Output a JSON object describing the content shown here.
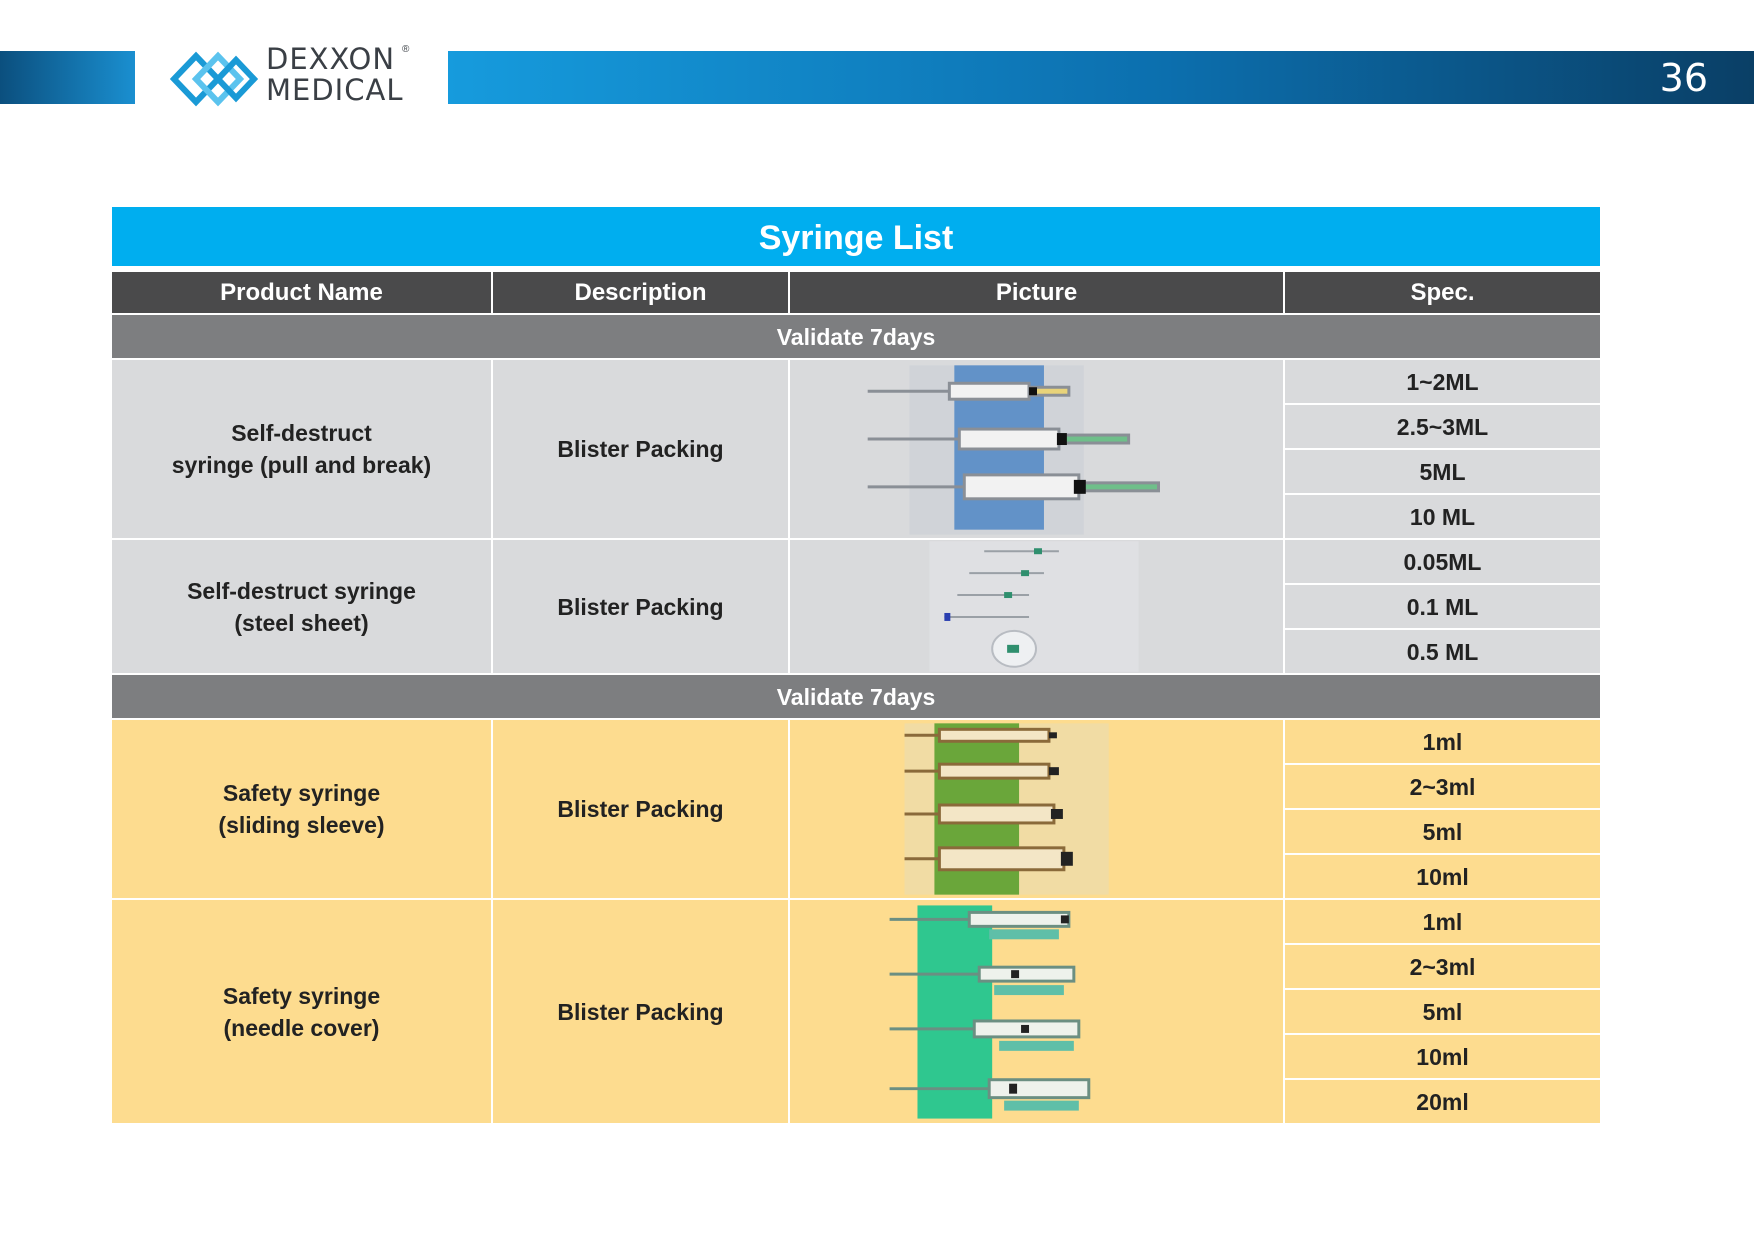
{
  "header": {
    "page_number": "36",
    "logo": {
      "line1": "DEXXON",
      "line2": "MEDICAL",
      "reg": "®"
    }
  },
  "table": {
    "title": "Syringe List",
    "columns": [
      "Product Name",
      "Description",
      "Picture",
      "Spec."
    ],
    "sections": [
      {
        "label": "Validate 7days",
        "rows": [
          {
            "name_line1": "Self-destruct",
            "name_line2": "syringe (pull and break)",
            "description": "Blister Packing",
            "picture": "self-destruct-pull-break-syringes-image",
            "specs": [
              "1~2ML",
              "2.5~3ML",
              "5ML",
              "10 ML"
            ]
          },
          {
            "name_line1": "Self-destruct syringe",
            "name_line2": "(steel sheet)",
            "description": "Blister Packing",
            "picture": "self-destruct-steel-sheet-syringes-image",
            "specs": [
              "0.05ML",
              "0.1 ML",
              "0.5 ML"
            ]
          }
        ]
      },
      {
        "label": "Validate 7days",
        "rows": [
          {
            "name_line1": "Safety syringe",
            "name_line2": "(sliding sleeve)",
            "description": "Blister Packing",
            "picture": "safety-sliding-sleeve-syringes-image",
            "specs": [
              "1ml",
              "2~3ml",
              "5ml",
              "10ml"
            ]
          },
          {
            "name_line1": "Safety syringe",
            "name_line2": "(needle cover)",
            "description": "Blister Packing",
            "picture": "safety-needle-cover-syringes-image",
            "specs": [
              "1ml",
              "2~3ml",
              "5ml",
              "10ml",
              "20ml"
            ]
          }
        ]
      }
    ]
  },
  "colors": {
    "title_bar": "#00aeef",
    "column_header": "#4a4a4b",
    "section_header": "#7d7e80",
    "grey_row": "#d9dadc",
    "yellow_row": "#fddc8f"
  }
}
